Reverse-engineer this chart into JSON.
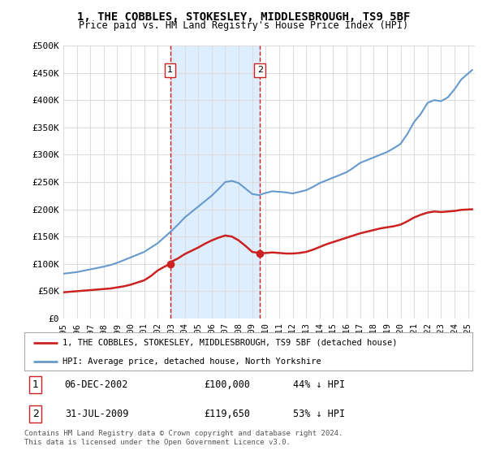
{
  "title": "1, THE COBBLES, STOKESLEY, MIDDLESBROUGH, TS9 5BF",
  "subtitle": "Price paid vs. HM Land Registry's House Price Index (HPI)",
  "ylabel_ticks": [
    0,
    50000,
    100000,
    150000,
    200000,
    250000,
    300000,
    350000,
    400000,
    450000,
    500000
  ],
  "ylabel_labels": [
    "£0",
    "£50K",
    "£100K",
    "£150K",
    "£200K",
    "£250K",
    "£300K",
    "£350K",
    "£400K",
    "£450K",
    "£500K"
  ],
  "ylim": [
    0,
    500000
  ],
  "xlim_start": 1995.0,
  "xlim_end": 2025.5,
  "hpi_color": "#6699cc",
  "price_color": "#cc2222",
  "shaded_color": "#ddeeff",
  "dashed_color": "#cc2222",
  "transaction1": {
    "year_num": 2002.92,
    "price": 100000,
    "label": "1",
    "date": "06-DEC-2002",
    "pct": "44% ↓ HPI"
  },
  "transaction2": {
    "year_num": 2009.58,
    "price": 119650,
    "label": "2",
    "date": "31-JUL-2009",
    "pct": "53% ↓ HPI"
  },
  "legend_line1": "1, THE COBBLES, STOKESLEY, MIDDLESBROUGH, TS9 5BF (detached house)",
  "legend_line2": "HPI: Average price, detached house, North Yorkshire",
  "footnote": "Contains HM Land Registry data © Crown copyright and database right 2024.\nThis data is licensed under the Open Government Licence v3.0.",
  "background_color": "#ffffff",
  "plot_bg_color": "#ffffff",
  "grid_color": "#dddddd",
  "hpi_years": [
    1995,
    1995.5,
    1996,
    1996.5,
    1997,
    1997.5,
    1998,
    1998.5,
    1999,
    1999.5,
    2000,
    2000.5,
    2001,
    2001.5,
    2002,
    2002.5,
    2003,
    2003.5,
    2004,
    2004.5,
    2005,
    2005.5,
    2006,
    2006.5,
    2007,
    2007.5,
    2008,
    2008.5,
    2009,
    2009.5,
    2010,
    2010.5,
    2011,
    2011.5,
    2012,
    2012.5,
    2013,
    2013.5,
    2014,
    2014.5,
    2015,
    2015.5,
    2016,
    2016.5,
    2017,
    2017.5,
    2018,
    2018.5,
    2019,
    2019.5,
    2020,
    2020.5,
    2021,
    2021.5,
    2022,
    2022.5,
    2023,
    2023.5,
    2024,
    2024.5,
    2025.3
  ],
  "hpi_values": [
    82000,
    83500,
    85000,
    87500,
    90000,
    92500,
    95000,
    98000,
    102000,
    107000,
    112000,
    117000,
    122000,
    130000,
    138000,
    149000,
    160000,
    172000,
    185000,
    195000,
    205000,
    215000,
    225000,
    237000,
    250000,
    252000,
    248000,
    238000,
    228000,
    226000,
    230000,
    233000,
    232000,
    231000,
    229000,
    232000,
    235000,
    241000,
    248000,
    253000,
    258000,
    263000,
    268000,
    276000,
    285000,
    290000,
    295000,
    300000,
    305000,
    312000,
    320000,
    338000,
    360000,
    375000,
    395000,
    400000,
    398000,
    405000,
    420000,
    438000,
    455000
  ],
  "price_years": [
    1995,
    1995.5,
    1996,
    1996.5,
    1997,
    1997.5,
    1998,
    1998.5,
    1999,
    1999.5,
    2000,
    2000.5,
    2001,
    2001.5,
    2002,
    2002.5,
    2002.92,
    2003,
    2003.5,
    2004,
    2004.5,
    2005,
    2005.5,
    2006,
    2006.5,
    2007,
    2007.5,
    2008,
    2008.5,
    2009,
    2009.58,
    2010,
    2010.5,
    2011,
    2011.5,
    2012,
    2012.5,
    2013,
    2013.5,
    2014,
    2014.5,
    2015,
    2015.5,
    2016,
    2016.5,
    2017,
    2017.5,
    2018,
    2018.5,
    2019,
    2019.5,
    2020,
    2020.5,
    2021,
    2021.5,
    2022,
    2022.5,
    2023,
    2023.5,
    2024,
    2024.5,
    2025.3
  ],
  "price_values": [
    48000,
    49000,
    50000,
    51000,
    52000,
    53000,
    54000,
    55000,
    57000,
    59000,
    62000,
    66000,
    70000,
    78000,
    88000,
    95000,
    100000,
    104000,
    110000,
    118000,
    124000,
    130000,
    137000,
    143000,
    148000,
    152000,
    150000,
    143000,
    133000,
    122000,
    119650,
    120000,
    121000,
    120000,
    119000,
    119000,
    120000,
    122000,
    126000,
    131000,
    136000,
    140000,
    144000,
    148000,
    152000,
    156000,
    159000,
    162000,
    165000,
    167000,
    169000,
    172000,
    178000,
    185000,
    190000,
    194000,
    196000,
    195000,
    196000,
    197000,
    199000,
    200000
  ]
}
